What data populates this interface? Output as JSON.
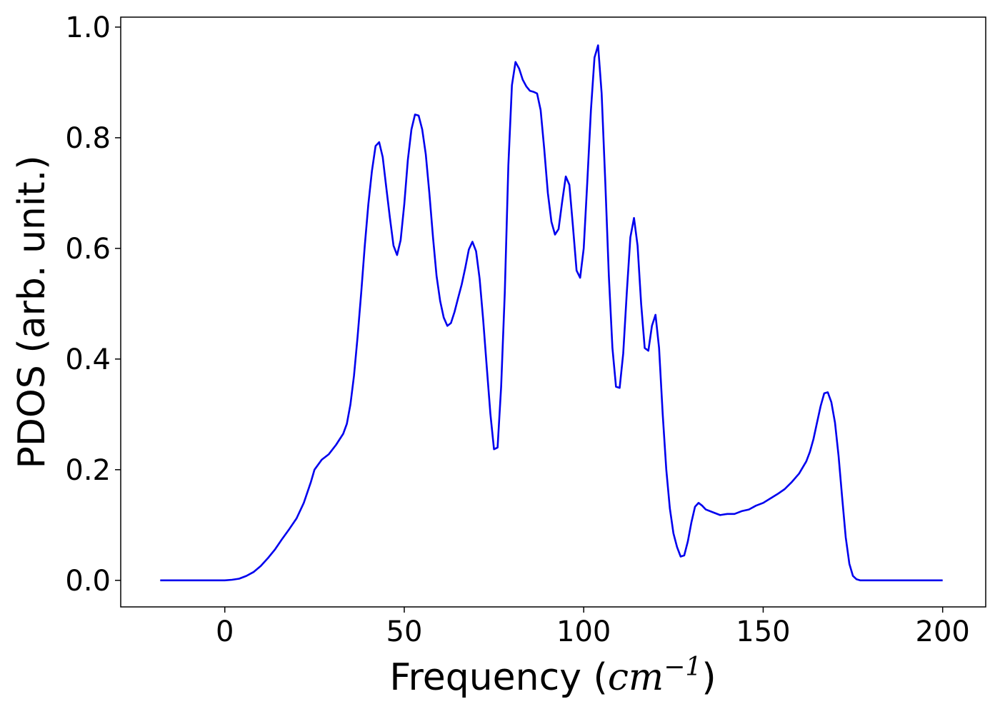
{
  "chart_data": {
    "type": "line",
    "title": "",
    "xlabel": "Frequency (",
    "xlabel_math": "cm",
    "xlabel_sup": "−1",
    "xlabel_close": ")",
    "ylabel": "PDOS (arb. unit.)",
    "xlim": [
      -29,
      212
    ],
    "ylim": [
      -0.048,
      1.018
    ],
    "xticks": [
      0,
      50,
      100,
      150,
      200
    ],
    "xtick_labels": [
      "0",
      "50",
      "100",
      "150",
      "200"
    ],
    "yticks": [
      0.0,
      0.2,
      0.4,
      0.6,
      0.8,
      1.0
    ],
    "ytick_labels": [
      "0.0",
      "0.2",
      "0.4",
      "0.6",
      "0.8",
      "1.0"
    ],
    "grid": false,
    "legend": "none",
    "series": [
      {
        "color": "#0000ee",
        "points": [
          [
            -18,
            0.0
          ],
          [
            -10,
            0.0
          ],
          [
            -2,
            0.0
          ],
          [
            0,
            0.0
          ],
          [
            2,
            0.001
          ],
          [
            4,
            0.003
          ],
          [
            6,
            0.008
          ],
          [
            8,
            0.015
          ],
          [
            10,
            0.026
          ],
          [
            12,
            0.04
          ],
          [
            14,
            0.056
          ],
          [
            16,
            0.075
          ],
          [
            18,
            0.093
          ],
          [
            20,
            0.112
          ],
          [
            22,
            0.14
          ],
          [
            24,
            0.178
          ],
          [
            25,
            0.2
          ],
          [
            27,
            0.218
          ],
          [
            29,
            0.228
          ],
          [
            31,
            0.245
          ],
          [
            33,
            0.265
          ],
          [
            34,
            0.283
          ],
          [
            35,
            0.318
          ],
          [
            36,
            0.37
          ],
          [
            37,
            0.44
          ],
          [
            38,
            0.52
          ],
          [
            39,
            0.605
          ],
          [
            40,
            0.68
          ],
          [
            41,
            0.74
          ],
          [
            42,
            0.785
          ],
          [
            43,
            0.792
          ],
          [
            44,
            0.765
          ],
          [
            45,
            0.71
          ],
          [
            46,
            0.655
          ],
          [
            47,
            0.605
          ],
          [
            48,
            0.588
          ],
          [
            49,
            0.615
          ],
          [
            50,
            0.68
          ],
          [
            51,
            0.76
          ],
          [
            52,
            0.815
          ],
          [
            53,
            0.842
          ],
          [
            54,
            0.84
          ],
          [
            55,
            0.815
          ],
          [
            56,
            0.77
          ],
          [
            57,
            0.7
          ],
          [
            58,
            0.62
          ],
          [
            59,
            0.55
          ],
          [
            60,
            0.505
          ],
          [
            61,
            0.475
          ],
          [
            62,
            0.46
          ],
          [
            63,
            0.465
          ],
          [
            64,
            0.485
          ],
          [
            65,
            0.51
          ],
          [
            66,
            0.535
          ],
          [
            67,
            0.565
          ],
          [
            68,
            0.598
          ],
          [
            69,
            0.612
          ],
          [
            70,
            0.595
          ],
          [
            71,
            0.545
          ],
          [
            72,
            0.47
          ],
          [
            73,
            0.385
          ],
          [
            74,
            0.3
          ],
          [
            75,
            0.237
          ],
          [
            76,
            0.24
          ],
          [
            77,
            0.35
          ],
          [
            78,
            0.52
          ],
          [
            79,
            0.75
          ],
          [
            80,
            0.895
          ],
          [
            81,
            0.937
          ],
          [
            82,
            0.925
          ],
          [
            83,
            0.905
          ],
          [
            84,
            0.893
          ],
          [
            85,
            0.885
          ],
          [
            86,
            0.883
          ],
          [
            87,
            0.88
          ],
          [
            88,
            0.85
          ],
          [
            89,
            0.78
          ],
          [
            90,
            0.7
          ],
          [
            91,
            0.648
          ],
          [
            92,
            0.625
          ],
          [
            93,
            0.635
          ],
          [
            94,
            0.685
          ],
          [
            95,
            0.73
          ],
          [
            96,
            0.715
          ],
          [
            97,
            0.64
          ],
          [
            98,
            0.56
          ],
          [
            99,
            0.547
          ],
          [
            100,
            0.6
          ],
          [
            101,
            0.72
          ],
          [
            102,
            0.85
          ],
          [
            103,
            0.945
          ],
          [
            104,
            0.967
          ],
          [
            105,
            0.88
          ],
          [
            106,
            0.72
          ],
          [
            107,
            0.55
          ],
          [
            108,
            0.42
          ],
          [
            109,
            0.35
          ],
          [
            110,
            0.348
          ],
          [
            111,
            0.41
          ],
          [
            112,
            0.52
          ],
          [
            113,
            0.62
          ],
          [
            114,
            0.655
          ],
          [
            115,
            0.605
          ],
          [
            116,
            0.5
          ],
          [
            117,
            0.42
          ],
          [
            118,
            0.415
          ],
          [
            119,
            0.46
          ],
          [
            120,
            0.48
          ],
          [
            121,
            0.42
          ],
          [
            122,
            0.3
          ],
          [
            123,
            0.2
          ],
          [
            124,
            0.13
          ],
          [
            125,
            0.085
          ],
          [
            126,
            0.06
          ],
          [
            127,
            0.043
          ],
          [
            128,
            0.045
          ],
          [
            129,
            0.07
          ],
          [
            130,
            0.105
          ],
          [
            131,
            0.133
          ],
          [
            132,
            0.14
          ],
          [
            133,
            0.135
          ],
          [
            134,
            0.128
          ],
          [
            136,
            0.123
          ],
          [
            138,
            0.118
          ],
          [
            140,
            0.12
          ],
          [
            142,
            0.12
          ],
          [
            144,
            0.125
          ],
          [
            146,
            0.128
          ],
          [
            148,
            0.135
          ],
          [
            150,
            0.14
          ],
          [
            152,
            0.148
          ],
          [
            154,
            0.156
          ],
          [
            156,
            0.165
          ],
          [
            158,
            0.178
          ],
          [
            160,
            0.193
          ],
          [
            162,
            0.215
          ],
          [
            163,
            0.232
          ],
          [
            164,
            0.255
          ],
          [
            165,
            0.285
          ],
          [
            166,
            0.315
          ],
          [
            167,
            0.338
          ],
          [
            168,
            0.34
          ],
          [
            169,
            0.322
          ],
          [
            170,
            0.285
          ],
          [
            171,
            0.225
          ],
          [
            172,
            0.15
          ],
          [
            173,
            0.078
          ],
          [
            174,
            0.03
          ],
          [
            175,
            0.008
          ],
          [
            176,
            0.002
          ],
          [
            177,
            0.0
          ],
          [
            180,
            0.0
          ],
          [
            190,
            0.0
          ],
          [
            200,
            0.0
          ]
        ]
      }
    ]
  }
}
